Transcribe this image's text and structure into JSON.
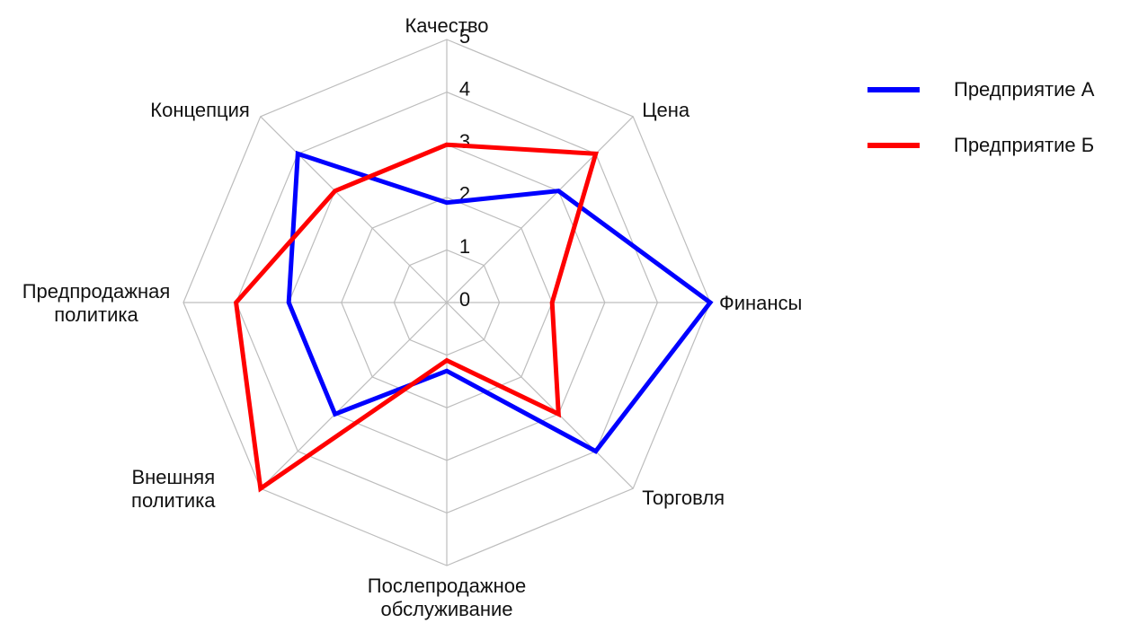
{
  "chart_data": {
    "type": "radar",
    "categories": [
      "Качество",
      "Цена",
      "Финансы",
      "Торговля",
      "Послепродажное обслуживание",
      "Внешняя политика",
      "Предпродажная политика",
      "Концепция"
    ],
    "category_lines": [
      [
        "Качество"
      ],
      [
        "Цена"
      ],
      [
        "Финансы"
      ],
      [
        "Торговля"
      ],
      [
        "Послепродажное",
        "обслуживание"
      ],
      [
        "Внешняя",
        "политика"
      ],
      [
        "Предпродажная",
        "политика"
      ],
      [
        "Концепция"
      ]
    ],
    "r_ticks": [
      0,
      1,
      2,
      3,
      4,
      5
    ],
    "r_range": [
      0,
      5
    ],
    "grid": true,
    "legend_position": "right",
    "series": [
      {
        "name": "Предприятие А",
        "color": "#0000ff",
        "values": [
          1.9,
          3.0,
          5.0,
          4.0,
          1.3,
          3.0,
          3.0,
          4.0
        ]
      },
      {
        "name": "Предприятие Б",
        "color": "#ff0000",
        "values": [
          3.0,
          4.0,
          2.0,
          3.0,
          1.1,
          5.0,
          4.0,
          3.0
        ]
      }
    ]
  }
}
